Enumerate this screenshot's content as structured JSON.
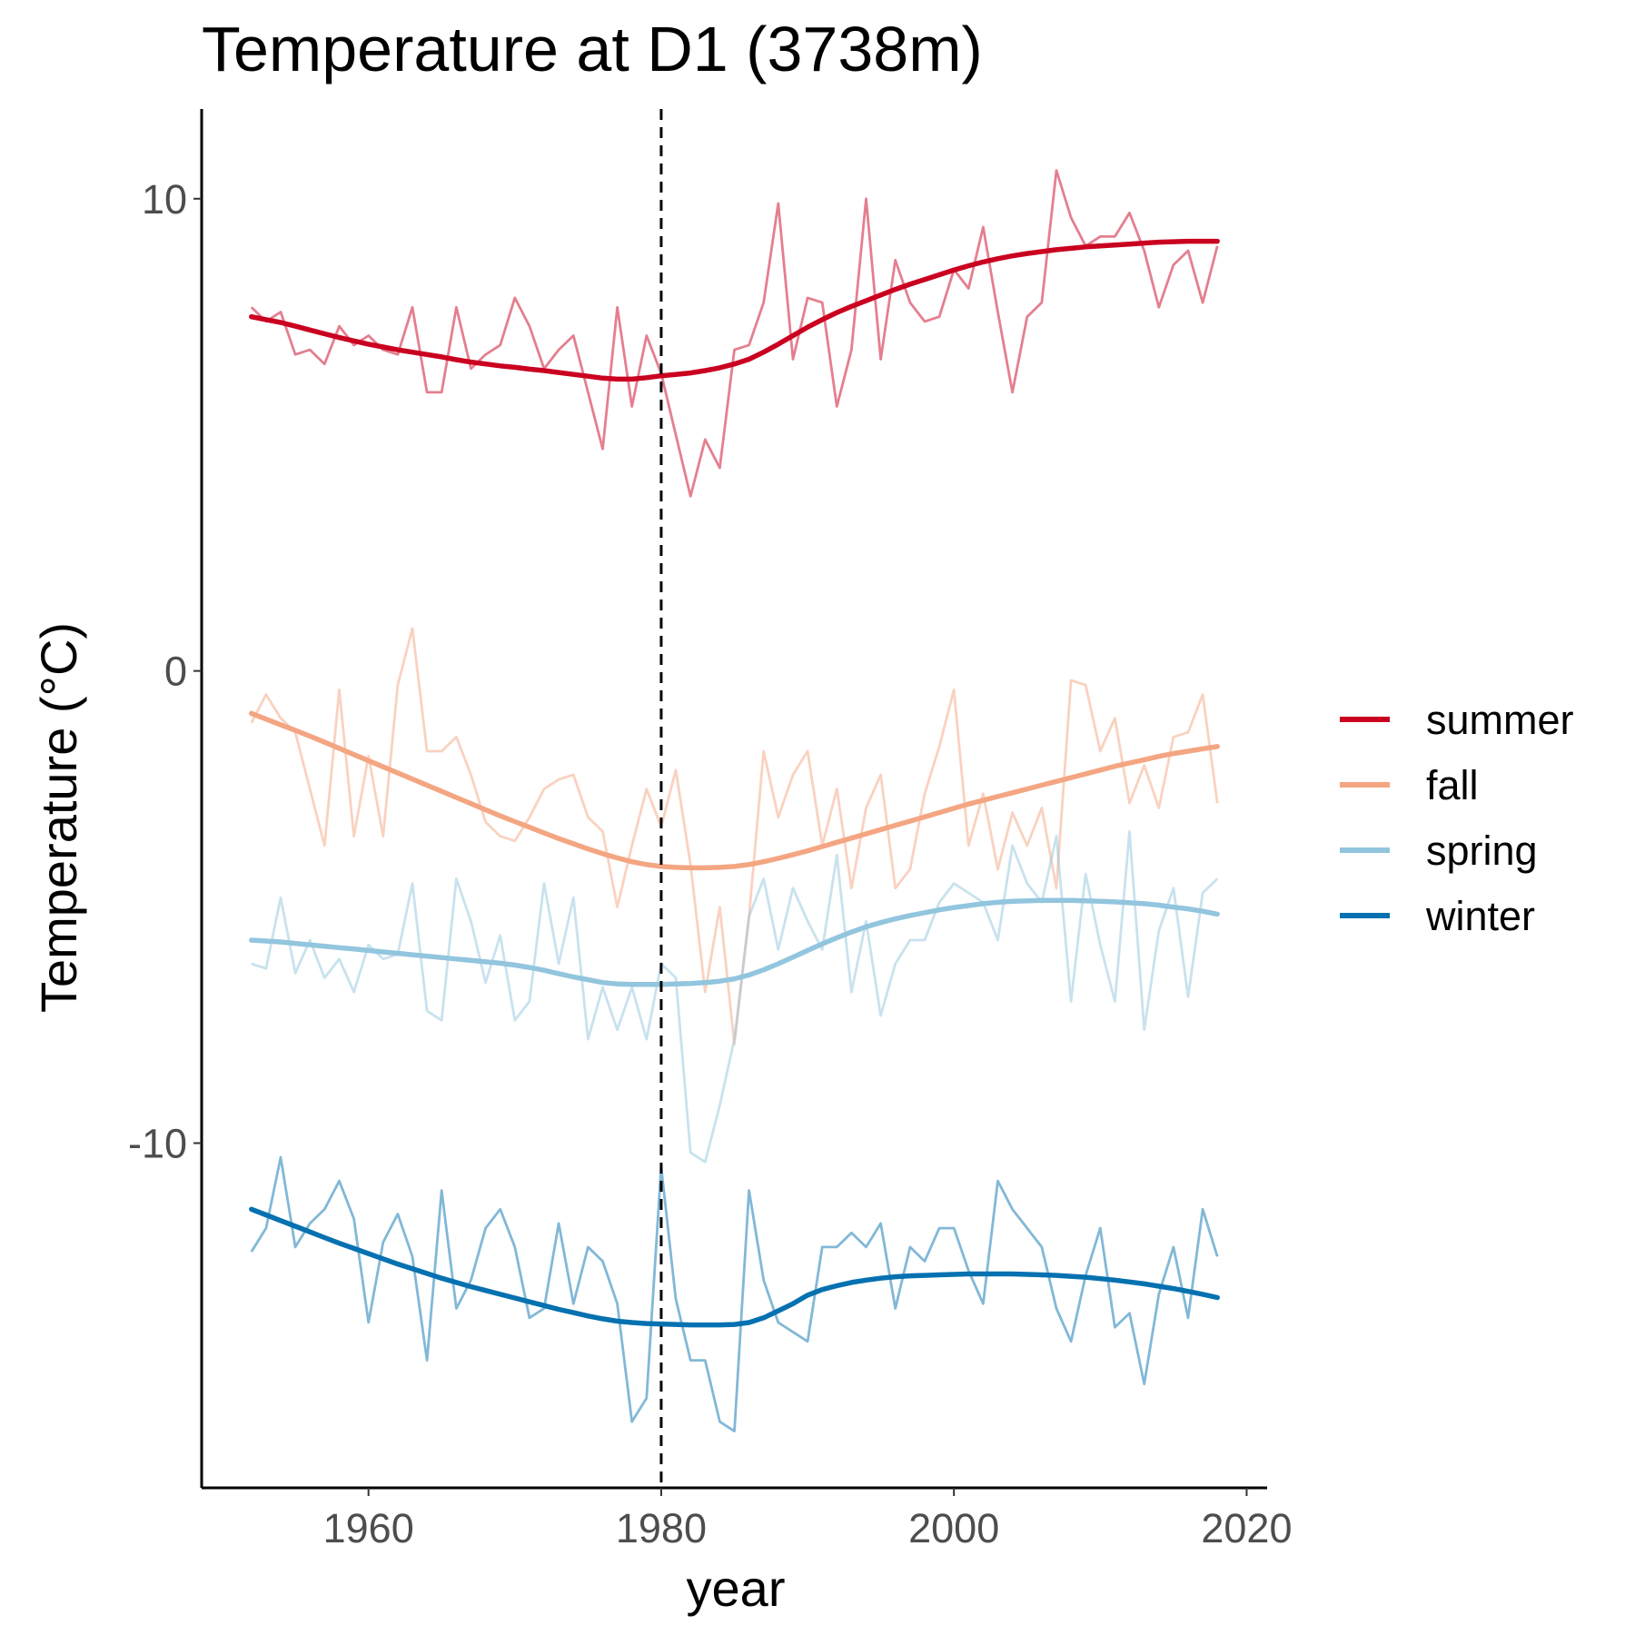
{
  "chart_data": {
    "type": "line",
    "title": "Temperature at D1 (3738m)",
    "xlabel": "year",
    "ylabel": "Temperature (°C)",
    "xlim": [
      1948.6,
      2021.4
    ],
    "ylim": [
      -17.3,
      11.9
    ],
    "x_ticks": [
      1960,
      1980,
      2000,
      2020
    ],
    "x_tick_labels": [
      "1960",
      "1980",
      "2000",
      "2020"
    ],
    "y_ticks": [
      -10,
      0,
      10
    ],
    "y_tick_labels": [
      "-10",
      "0",
      "10"
    ],
    "grid": false,
    "legend_position": "right",
    "reference_line": {
      "x": 1980,
      "style": "dashed",
      "color": "#000000"
    },
    "x": [
      1952,
      1953,
      1954,
      1955,
      1956,
      1957,
      1958,
      1959,
      1960,
      1961,
      1962,
      1963,
      1964,
      1965,
      1966,
      1967,
      1968,
      1969,
      1970,
      1971,
      1972,
      1973,
      1974,
      1975,
      1976,
      1977,
      1978,
      1979,
      1980,
      1981,
      1982,
      1983,
      1984,
      1985,
      1986,
      1987,
      1988,
      1989,
      1990,
      1991,
      1992,
      1993,
      1994,
      1995,
      1996,
      1997,
      1998,
      1999,
      2000,
      2001,
      2002,
      2003,
      2004,
      2005,
      2006,
      2007,
      2008,
      2009,
      2010,
      2011,
      2012,
      2013,
      2014,
      2015,
      2016,
      2017,
      2018
    ],
    "series": [
      {
        "name": "summer",
        "color": "#ca0020",
        "values": [
          7.7,
          7.4,
          7.6,
          6.7,
          6.8,
          6.5,
          7.3,
          6.9,
          7.1,
          6.8,
          6.7,
          7.7,
          5.9,
          5.9,
          7.7,
          6.4,
          6.7,
          6.9,
          7.9,
          7.3,
          6.4,
          6.8,
          7.1,
          5.9,
          4.7,
          7.7,
          5.6,
          7.1,
          6.3,
          5.0,
          3.7,
          4.9,
          4.3,
          6.8,
          6.9,
          7.8,
          9.9,
          6.6,
          7.9,
          7.8,
          5.6,
          6.8,
          10.0,
          6.6,
          8.7,
          7.8,
          7.4,
          7.5,
          8.5,
          8.1,
          9.4,
          7.6,
          5.9,
          7.5,
          7.8,
          10.6,
          9.6,
          9.0,
          9.2,
          9.2,
          9.7,
          8.9,
          7.7,
          8.6,
          8.9,
          7.8,
          9.0
        ],
        "trend": [
          7.5,
          7.44,
          7.38,
          7.3,
          7.22,
          7.14,
          7.06,
          6.99,
          6.92,
          6.86,
          6.8,
          6.75,
          6.7,
          6.65,
          6.59,
          6.54,
          6.5,
          6.46,
          6.43,
          6.39,
          6.36,
          6.32,
          6.28,
          6.24,
          6.2,
          6.18,
          6.18,
          6.21,
          6.25,
          6.28,
          6.31,
          6.36,
          6.42,
          6.5,
          6.6,
          6.75,
          6.92,
          7.1,
          7.28,
          7.44,
          7.59,
          7.72,
          7.84,
          7.96,
          8.08,
          8.19,
          8.29,
          8.39,
          8.49,
          8.58,
          8.66,
          8.73,
          8.79,
          8.84,
          8.88,
          8.92,
          8.95,
          8.98,
          9.0,
          9.02,
          9.04,
          9.06,
          9.08,
          9.09,
          9.1,
          9.1,
          9.1
        ]
      },
      {
        "name": "fall",
        "color": "#f4a582",
        "values": [
          -1.1,
          -0.5,
          -1.0,
          -1.3,
          -2.5,
          -3.7,
          -0.4,
          -3.5,
          -1.8,
          -3.5,
          -0.3,
          0.9,
          -1.7,
          -1.7,
          -1.4,
          -2.2,
          -3.2,
          -3.5,
          -3.6,
          -3.1,
          -2.5,
          -2.3,
          -2.2,
          -3.1,
          -3.4,
          -5.0,
          -3.7,
          -2.5,
          -3.3,
          -2.1,
          -4.1,
          -6.8,
          -5.0,
          -7.9,
          -5.2,
          -1.7,
          -3.1,
          -2.2,
          -1.7,
          -3.7,
          -2.5,
          -4.6,
          -2.9,
          -2.2,
          -4.6,
          -4.2,
          -2.6,
          -1.6,
          -0.4,
          -3.7,
          -2.6,
          -4.2,
          -3.0,
          -3.7,
          -2.9,
          -4.6,
          -0.2,
          -0.3,
          -1.7,
          -1.0,
          -2.8,
          -2.0,
          -2.9,
          -1.4,
          -1.3,
          -0.5,
          -2.8
        ],
        "trend": [
          -0.9,
          -1.02,
          -1.14,
          -1.26,
          -1.38,
          -1.51,
          -1.64,
          -1.77,
          -1.9,
          -2.03,
          -2.16,
          -2.29,
          -2.42,
          -2.55,
          -2.68,
          -2.81,
          -2.94,
          -3.07,
          -3.19,
          -3.31,
          -3.43,
          -3.55,
          -3.66,
          -3.77,
          -3.87,
          -3.96,
          -4.04,
          -4.1,
          -4.14,
          -4.16,
          -4.17,
          -4.17,
          -4.16,
          -4.14,
          -4.1,
          -4.04,
          -3.97,
          -3.89,
          -3.81,
          -3.72,
          -3.63,
          -3.54,
          -3.45,
          -3.36,
          -3.27,
          -3.18,
          -3.09,
          -3.0,
          -2.91,
          -2.82,
          -2.74,
          -2.66,
          -2.58,
          -2.5,
          -2.42,
          -2.34,
          -2.26,
          -2.18,
          -2.1,
          -2.02,
          -1.95,
          -1.88,
          -1.81,
          -1.75,
          -1.7,
          -1.65,
          -1.6
        ]
      },
      {
        "name": "spring",
        "color": "#92c5de",
        "values": [
          -6.2,
          -6.3,
          -4.8,
          -6.4,
          -5.7,
          -6.5,
          -6.1,
          -6.8,
          -5.8,
          -6.1,
          -6.0,
          -4.5,
          -7.2,
          -7.4,
          -4.4,
          -5.3,
          -6.6,
          -5.6,
          -7.4,
          -7.0,
          -4.5,
          -6.2,
          -4.8,
          -7.8,
          -6.7,
          -7.6,
          -6.7,
          -7.8,
          -6.2,
          -6.5,
          -10.2,
          -10.4,
          -9.2,
          -7.8,
          -5.2,
          -4.4,
          -5.9,
          -4.6,
          -5.3,
          -5.9,
          -3.9,
          -6.8,
          -5.3,
          -7.3,
          -6.2,
          -5.7,
          -5.7,
          -4.9,
          -4.5,
          -4.7,
          -4.9,
          -5.7,
          -3.7,
          -4.5,
          -4.9,
          -3.5,
          -7.0,
          -4.3,
          -5.8,
          -7.0,
          -3.4,
          -7.6,
          -5.5,
          -4.6,
          -6.9,
          -4.7,
          -4.4
        ],
        "trend": [
          -5.7,
          -5.72,
          -5.74,
          -5.77,
          -5.8,
          -5.83,
          -5.86,
          -5.89,
          -5.92,
          -5.95,
          -5.98,
          -6.01,
          -6.04,
          -6.07,
          -6.1,
          -6.13,
          -6.16,
          -6.19,
          -6.23,
          -6.28,
          -6.34,
          -6.41,
          -6.48,
          -6.54,
          -6.6,
          -6.63,
          -6.64,
          -6.64,
          -6.64,
          -6.63,
          -6.62,
          -6.6,
          -6.57,
          -6.52,
          -6.44,
          -6.33,
          -6.2,
          -6.06,
          -5.92,
          -5.78,
          -5.65,
          -5.53,
          -5.42,
          -5.33,
          -5.25,
          -5.18,
          -5.12,
          -5.06,
          -5.01,
          -4.97,
          -4.93,
          -4.9,
          -4.88,
          -4.87,
          -4.86,
          -4.86,
          -4.86,
          -4.87,
          -4.88,
          -4.89,
          -4.91,
          -4.93,
          -4.96,
          -5.0,
          -5.04,
          -5.09,
          -5.15
        ]
      },
      {
        "name": "winter",
        "color": "#0571b0",
        "values": [
          -12.3,
          -11.8,
          -10.3,
          -12.2,
          -11.7,
          -11.4,
          -10.8,
          -11.6,
          -13.8,
          -12.1,
          -11.5,
          -12.4,
          -14.6,
          -11.0,
          -13.5,
          -12.9,
          -11.8,
          -11.4,
          -12.2,
          -13.7,
          -13.5,
          -11.7,
          -13.4,
          -12.2,
          -12.5,
          -13.4,
          -15.9,
          -15.4,
          -10.5,
          -13.3,
          -14.6,
          -14.6,
          -15.9,
          -16.1,
          -11.0,
          -12.9,
          -13.8,
          -14.0,
          -14.2,
          -12.2,
          -12.2,
          -11.9,
          -12.2,
          -11.7,
          -13.5,
          -12.2,
          -12.5,
          -11.8,
          -11.8,
          -12.7,
          -13.4,
          -10.8,
          -11.4,
          -11.8,
          -12.2,
          -13.5,
          -14.2,
          -12.8,
          -11.8,
          -13.9,
          -13.6,
          -15.1,
          -13.2,
          -12.2,
          -13.7,
          -11.4,
          -12.4
        ],
        "trend": [
          -11.4,
          -11.52,
          -11.64,
          -11.76,
          -11.88,
          -12.0,
          -12.12,
          -12.23,
          -12.34,
          -12.45,
          -12.56,
          -12.66,
          -12.76,
          -12.86,
          -12.95,
          -13.04,
          -13.12,
          -13.2,
          -13.28,
          -13.36,
          -13.44,
          -13.52,
          -13.59,
          -13.66,
          -13.72,
          -13.77,
          -13.8,
          -13.82,
          -13.83,
          -13.84,
          -13.85,
          -13.85,
          -13.85,
          -13.84,
          -13.8,
          -13.7,
          -13.55,
          -13.4,
          -13.22,
          -13.1,
          -13.02,
          -12.95,
          -12.9,
          -12.86,
          -12.83,
          -12.81,
          -12.8,
          -12.79,
          -12.78,
          -12.77,
          -12.77,
          -12.77,
          -12.77,
          -12.78,
          -12.79,
          -12.8,
          -12.82,
          -12.84,
          -12.87,
          -12.9,
          -12.94,
          -12.98,
          -13.03,
          -13.08,
          -13.14,
          -13.2,
          -13.27
        ]
      }
    ]
  }
}
